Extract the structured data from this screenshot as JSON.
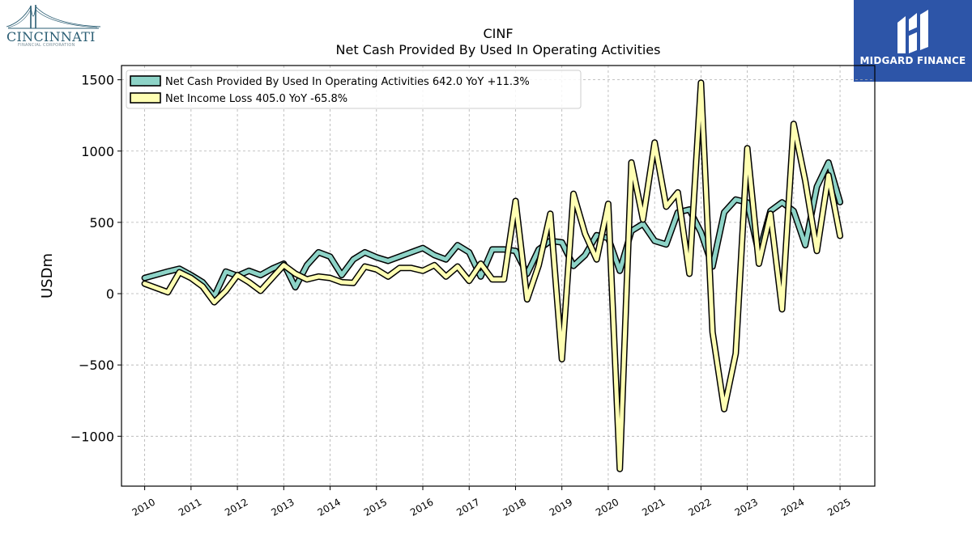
{
  "logos": {
    "left_name": "CINCINNATI",
    "left_sub": "FINANCIAL CORPORATION",
    "right_brand": "MIDGARD FINANCE"
  },
  "chart_data": {
    "type": "line",
    "title": "CINF",
    "subtitle": "Net Cash Provided By Used In Operating Activities",
    "xlabel": "",
    "ylabel": "USDm",
    "xlim": [
      2009.5,
      2025.75
    ],
    "ylim": [
      -1350,
      1600
    ],
    "yticks": [
      -1000,
      -500,
      0,
      500,
      1000,
      1500
    ],
    "ytick_labels": [
      "−1000",
      "−500",
      "0",
      "500",
      "1000",
      "1500"
    ],
    "xticks": [
      2010,
      2011,
      2012,
      2013,
      2014,
      2015,
      2016,
      2017,
      2018,
      2019,
      2020,
      2021,
      2022,
      2023,
      2024,
      2025
    ],
    "xtick_labels": [
      "2010",
      "2011",
      "2012",
      "2013",
      "2014",
      "2015",
      "2016",
      "2017",
      "2018",
      "2019",
      "2020",
      "2021",
      "2022",
      "2023",
      "2024",
      "2025"
    ],
    "grid": true,
    "legend_position": "top-left",
    "series": [
      {
        "name": "Net Cash Provided By Used In Operating Activities",
        "legend_label": "Net Cash Provided By Used In Operating Activities  642.0 YoY +11.3%",
        "color": "#8dd3c7",
        "points": [
          [
            2010.0,
            110
          ],
          [
            2010.5,
            155
          ],
          [
            2010.75,
            175
          ],
          [
            2011.0,
            130
          ],
          [
            2011.25,
            80
          ],
          [
            2011.5,
            -20
          ],
          [
            2011.75,
            155
          ],
          [
            2012.0,
            125
          ],
          [
            2012.25,
            160
          ],
          [
            2012.5,
            130
          ],
          [
            2012.75,
            175
          ],
          [
            2013.0,
            210
          ],
          [
            2013.25,
            45
          ],
          [
            2013.5,
            200
          ],
          [
            2013.75,
            290
          ],
          [
            2014.0,
            260
          ],
          [
            2014.25,
            130
          ],
          [
            2014.5,
            240
          ],
          [
            2014.75,
            290
          ],
          [
            2015.0,
            255
          ],
          [
            2015.25,
            230
          ],
          [
            2015.5,
            260
          ],
          [
            2015.75,
            290
          ],
          [
            2016.0,
            320
          ],
          [
            2016.25,
            270
          ],
          [
            2016.5,
            240
          ],
          [
            2016.75,
            340
          ],
          [
            2017.0,
            290
          ],
          [
            2017.25,
            120
          ],
          [
            2017.5,
            310
          ],
          [
            2017.75,
            310
          ],
          [
            2018.0,
            300
          ],
          [
            2018.25,
            140
          ],
          [
            2018.5,
            310
          ],
          [
            2018.75,
            370
          ],
          [
            2019.0,
            360
          ],
          [
            2019.25,
            195
          ],
          [
            2019.5,
            270
          ],
          [
            2019.75,
            410
          ],
          [
            2020.0,
            390
          ],
          [
            2020.25,
            160
          ],
          [
            2020.5,
            440
          ],
          [
            2020.75,
            490
          ],
          [
            2021.0,
            370
          ],
          [
            2021.25,
            345
          ],
          [
            2021.5,
            570
          ],
          [
            2021.75,
            590
          ],
          [
            2022.0,
            430
          ],
          [
            2022.25,
            190
          ],
          [
            2022.5,
            570
          ],
          [
            2022.75,
            660
          ],
          [
            2023.0,
            640
          ],
          [
            2023.25,
            280
          ],
          [
            2023.5,
            580
          ],
          [
            2023.75,
            640
          ],
          [
            2024.0,
            580
          ],
          [
            2024.25,
            340
          ],
          [
            2024.5,
            750
          ],
          [
            2024.75,
            920
          ],
          [
            2025.0,
            642
          ]
        ]
      },
      {
        "name": "Net Income Loss",
        "legend_label": "Net Income Loss  405.0 YoY -65.8%",
        "color": "#ffffb3",
        "points": [
          [
            2010.0,
            70
          ],
          [
            2010.5,
            10
          ],
          [
            2010.75,
            150
          ],
          [
            2011.0,
            110
          ],
          [
            2011.25,
            50
          ],
          [
            2011.5,
            -60
          ],
          [
            2011.75,
            20
          ],
          [
            2012.0,
            130
          ],
          [
            2012.25,
            80
          ],
          [
            2012.5,
            20
          ],
          [
            2012.75,
            110
          ],
          [
            2013.0,
            200
          ],
          [
            2013.25,
            140
          ],
          [
            2013.5,
            100
          ],
          [
            2013.75,
            120
          ],
          [
            2014.0,
            110
          ],
          [
            2014.25,
            80
          ],
          [
            2014.5,
            75
          ],
          [
            2014.75,
            190
          ],
          [
            2015.0,
            170
          ],
          [
            2015.25,
            120
          ],
          [
            2015.5,
            180
          ],
          [
            2015.75,
            180
          ],
          [
            2016.0,
            160
          ],
          [
            2016.25,
            200
          ],
          [
            2016.5,
            120
          ],
          [
            2016.75,
            190
          ],
          [
            2017.0,
            90
          ],
          [
            2017.25,
            210
          ],
          [
            2017.5,
            100
          ],
          [
            2017.75,
            100
          ],
          [
            2018.0,
            650
          ],
          [
            2018.25,
            -40
          ],
          [
            2018.5,
            200
          ],
          [
            2018.75,
            560
          ],
          [
            2019.0,
            -460
          ],
          [
            2019.25,
            700
          ],
          [
            2019.5,
            420
          ],
          [
            2019.75,
            240
          ],
          [
            2020.0,
            630
          ],
          [
            2020.25,
            -1230
          ],
          [
            2020.5,
            920
          ],
          [
            2020.75,
            520
          ],
          [
            2021.0,
            1060
          ],
          [
            2021.25,
            610
          ],
          [
            2021.5,
            710
          ],
          [
            2021.75,
            140
          ],
          [
            2022.0,
            1480
          ],
          [
            2022.25,
            -270
          ],
          [
            2022.5,
            -810
          ],
          [
            2022.75,
            -420
          ],
          [
            2023.0,
            1020
          ],
          [
            2023.25,
            210
          ],
          [
            2023.5,
            560
          ],
          [
            2023.75,
            -110
          ],
          [
            2024.0,
            1190
          ],
          [
            2024.25,
            790
          ],
          [
            2024.5,
            300
          ],
          [
            2024.75,
            830
          ],
          [
            2025.0,
            405
          ]
        ]
      }
    ]
  }
}
